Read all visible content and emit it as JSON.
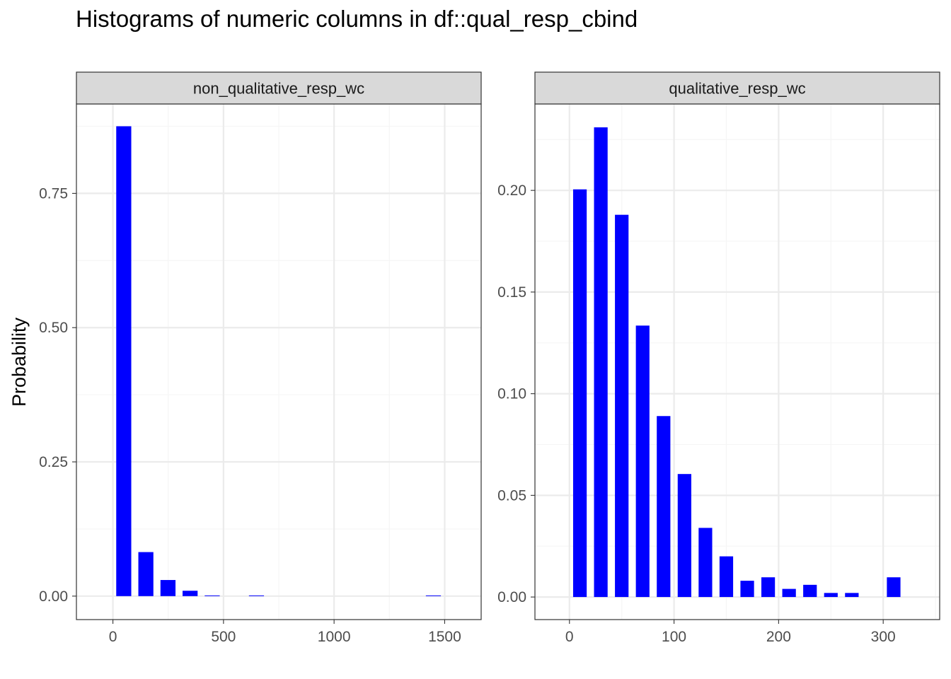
{
  "title": "Histograms of numeric columns in df::qual_resp_cbind",
  "ylabel": "Probability",
  "colors": {
    "bar": "#0000FF",
    "grid_major": "#EBEBEB",
    "grid_minor": "#F5F5F5",
    "strip_bg": "#D9D9D9",
    "panel_border": "#333333"
  },
  "chart_data": [
    {
      "type": "bar",
      "panel_label": "non_qualitative_resp_wc",
      "xlim": [
        -165,
        1665
      ],
      "ylim": [
        -0.0437,
        0.9165
      ],
      "xticks": [
        0,
        500,
        1000,
        1500
      ],
      "xtick_labels": [
        "0",
        "500",
        "1000",
        "1500"
      ],
      "yticks": [
        0,
        0.25,
        0.5,
        0.75
      ],
      "ytick_labels": [
        "0.00",
        "0.25",
        "0.50",
        "0.75"
      ],
      "bars": [
        {
          "x0": 15,
          "x1": 83,
          "value": 0.875
        },
        {
          "x0": 115,
          "x1": 183,
          "value": 0.082
        },
        {
          "x0": 215,
          "x1": 283,
          "value": 0.03
        },
        {
          "x0": 315,
          "x1": 383,
          "value": 0.01
        },
        {
          "x0": 415,
          "x1": 483,
          "value": 0.0012
        },
        {
          "x0": 615,
          "x1": 683,
          "value": 0.0012
        },
        {
          "x0": 1415,
          "x1": 1483,
          "value": 0.0012
        }
      ]
    },
    {
      "type": "bar",
      "panel_label": "qualitative_resp_wc",
      "xlim": [
        -33,
        354
      ],
      "ylim": [
        -0.0111,
        0.2425
      ],
      "xticks": [
        0,
        100,
        200,
        300
      ],
      "xtick_labels": [
        "0",
        "100",
        "200",
        "300"
      ],
      "yticks": [
        0,
        0.05,
        0.1,
        0.15,
        0.2
      ],
      "ytick_labels": [
        "0.00",
        "0.05",
        "0.10",
        "0.15",
        "0.20"
      ],
      "bars": [
        {
          "x0": 3.5,
          "x1": 16.5,
          "value": 0.2005
        },
        {
          "x0": 23.5,
          "x1": 36.5,
          "value": 0.231
        },
        {
          "x0": 43.5,
          "x1": 56.5,
          "value": 0.188
        },
        {
          "x0": 63.5,
          "x1": 76.5,
          "value": 0.1335
        },
        {
          "x0": 83.5,
          "x1": 96.5,
          "value": 0.089
        },
        {
          "x0": 103.5,
          "x1": 116.5,
          "value": 0.0605
        },
        {
          "x0": 123.5,
          "x1": 136.5,
          "value": 0.034
        },
        {
          "x0": 143.5,
          "x1": 156.5,
          "value": 0.02
        },
        {
          "x0": 163.5,
          "x1": 176.5,
          "value": 0.008
        },
        {
          "x0": 183.5,
          "x1": 196.5,
          "value": 0.0097
        },
        {
          "x0": 203.5,
          "x1": 216.5,
          "value": 0.004
        },
        {
          "x0": 223.5,
          "x1": 236.5,
          "value": 0.006
        },
        {
          "x0": 243.5,
          "x1": 256.5,
          "value": 0.002
        },
        {
          "x0": 263.5,
          "x1": 276.5,
          "value": 0.002
        },
        {
          "x0": 303.5,
          "x1": 316.5,
          "value": 0.0097
        }
      ]
    }
  ]
}
